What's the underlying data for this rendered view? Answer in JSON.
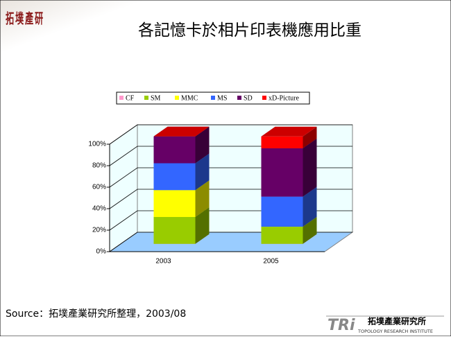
{
  "logo": {
    "text": "拓墣產研"
  },
  "chart_data": {
    "type": "bar3d-stacked",
    "title": "各記憶卡於相片印表機應用比重",
    "categories": [
      "2003",
      "2005"
    ],
    "series": [
      {
        "name": "CF",
        "color": "#ff99cc",
        "values": [
          0,
          0
        ]
      },
      {
        "name": "SM",
        "color": "#99cc00",
        "values": [
          25,
          16
        ]
      },
      {
        "name": "MMC",
        "color": "#ffff00",
        "values": [
          25,
          0
        ]
      },
      {
        "name": "MS",
        "color": "#3366ff",
        "values": [
          25,
          28
        ]
      },
      {
        "name": "SD",
        "color": "#660066",
        "values": [
          25,
          45
        ]
      },
      {
        "name": "xD-Picture",
        "color": "#ff0000",
        "values": [
          0,
          11
        ]
      }
    ],
    "ylim": [
      0,
      100
    ],
    "yticks": [
      {
        "value": 0,
        "label": "0%"
      },
      {
        "value": 20,
        "label": "20%"
      },
      {
        "value": 40,
        "label": "40%"
      },
      {
        "value": 60,
        "label": "60%"
      },
      {
        "value": 80,
        "label": "80%"
      },
      {
        "value": 100,
        "label": "100%"
      }
    ],
    "grid": true
  },
  "footer": {
    "source": "Source：拓墣產業研究所整理，2003/08",
    "brand": "TRi",
    "brand_cn": "拓墣產業研究所",
    "brand_en": "TOPOLOGY RESEARCH INSTITUTE"
  }
}
